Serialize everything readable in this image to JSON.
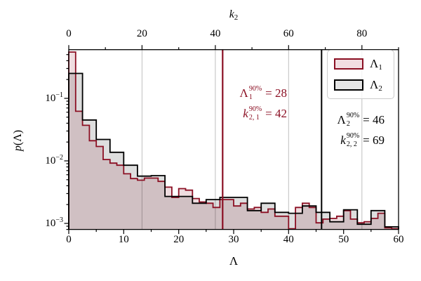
{
  "figure": {
    "background": "#ffffff"
  },
  "axis_labels": {
    "x": "Λ",
    "y_pre": "p",
    "y_rest": "(Λ)",
    "top_sym": "k",
    "top_sub": "2"
  },
  "legend": {
    "entries": [
      {
        "sym": "Λ",
        "sub": "1",
        "edge": "#8b0f23",
        "fill": "#f2dee2"
      },
      {
        "sym": "Λ",
        "sub": "2",
        "edge": "#000000",
        "fill": "#e4e4e4"
      }
    ]
  },
  "annotations": {
    "red": {
      "color": "#8b0f23",
      "lines": [
        {
          "sym": "Λ",
          "italic": false,
          "sup": "90%",
          "sub": "1",
          "rhs": "= 28"
        },
        {
          "sym": "k",
          "italic": true,
          "sup": "90%",
          "sub": "2, 1",
          "rhs": "= 42"
        }
      ]
    },
    "black": {
      "color": "#000000",
      "lines": [
        {
          "sym": "Λ",
          "italic": false,
          "sup": "90%",
          "sub": "2",
          "rhs": "= 46"
        },
        {
          "sym": "k",
          "italic": true,
          "sup": "90%",
          "sub": "2, 2",
          "rhs": "= 69"
        }
      ]
    }
  },
  "chart_data": {
    "type": "histogram-step",
    "xlabel": "Λ",
    "ylabel": "p(Λ)",
    "top_xlabel": "k₂",
    "yscale": "log",
    "xlim": [
      0,
      60
    ],
    "top_xlim": [
      0,
      90
    ],
    "k2_per_lambda": 1.5,
    "ylim": [
      0.0008,
      0.6
    ],
    "x_ticks": [
      0,
      10,
      20,
      30,
      40,
      50,
      60
    ],
    "x_tick_labels": [
      "0",
      "10",
      "20",
      "30",
      "40",
      "50",
      "60"
    ],
    "x_minor_step": 5,
    "top_ticks": [
      0,
      20,
      40,
      60,
      80
    ],
    "top_tick_labels": [
      "0",
      "20",
      "40",
      "60",
      "80"
    ],
    "top_minor_step": 10,
    "y_ticks": [
      0.1,
      0.01,
      0.001
    ],
    "y_tick_labels": [
      {
        "base": "10",
        "exp": "−1"
      },
      {
        "base": "10",
        "exp": "−2"
      },
      {
        "base": "10",
        "exp": "−3"
      }
    ],
    "grid_top_x": [
      20,
      40,
      60,
      80
    ],
    "grid_color": "#bfbfbf",
    "series": [
      {
        "name": "Λ1",
        "color": "#8b0f23",
        "fill": "rgba(139,15,35,0.14)",
        "bin_start": 0,
        "bin_width": 1.25,
        "values": [
          0.55,
          0.062,
          0.037,
          0.021,
          0.017,
          0.0105,
          0.0092,
          0.0085,
          0.0062,
          0.0052,
          0.0049,
          0.0053,
          0.0053,
          0.0047,
          0.0038,
          0.0026,
          0.0036,
          0.0034,
          0.0025,
          0.0022,
          0.0021,
          0.0018,
          0.0024,
          0.0024,
          0.0019,
          0.0021,
          0.0017,
          0.0018,
          0.0015,
          0.0017,
          0.0013,
          0.0013,
          0.00082,
          0.0018,
          0.0021,
          0.0018,
          0.00102,
          0.00117,
          0.0012,
          0.0013,
          0.0016,
          0.00117,
          0.00102,
          0.00106,
          0.0012,
          0.00145,
          0.00085,
          0.00082
        ]
      },
      {
        "name": "Λ2",
        "color": "#000000",
        "fill": "rgba(0,0,0,0.13)",
        "bin_start": 0,
        "bin_width": 2.5,
        "values": [
          0.25,
          0.045,
          0.022,
          0.0137,
          0.0085,
          0.0057,
          0.0058,
          0.0027,
          0.0027,
          0.0021,
          0.0024,
          0.0026,
          0.0026,
          0.0016,
          0.0021,
          0.0015,
          0.00145,
          0.0019,
          0.0015,
          0.00106,
          0.00165,
          0.00097,
          0.0016,
          0.00088
        ]
      }
    ],
    "vlines": [
      {
        "x": 28,
        "color": "#8b0f23",
        "width": 2.2,
        "meaning": "Λ1 90% = 28, k2,1 90% = 42"
      },
      {
        "x": 46,
        "color": "#000000",
        "width": 2.0,
        "meaning": "Λ2 90% = 46, k2,2 90% = 69"
      }
    ]
  }
}
